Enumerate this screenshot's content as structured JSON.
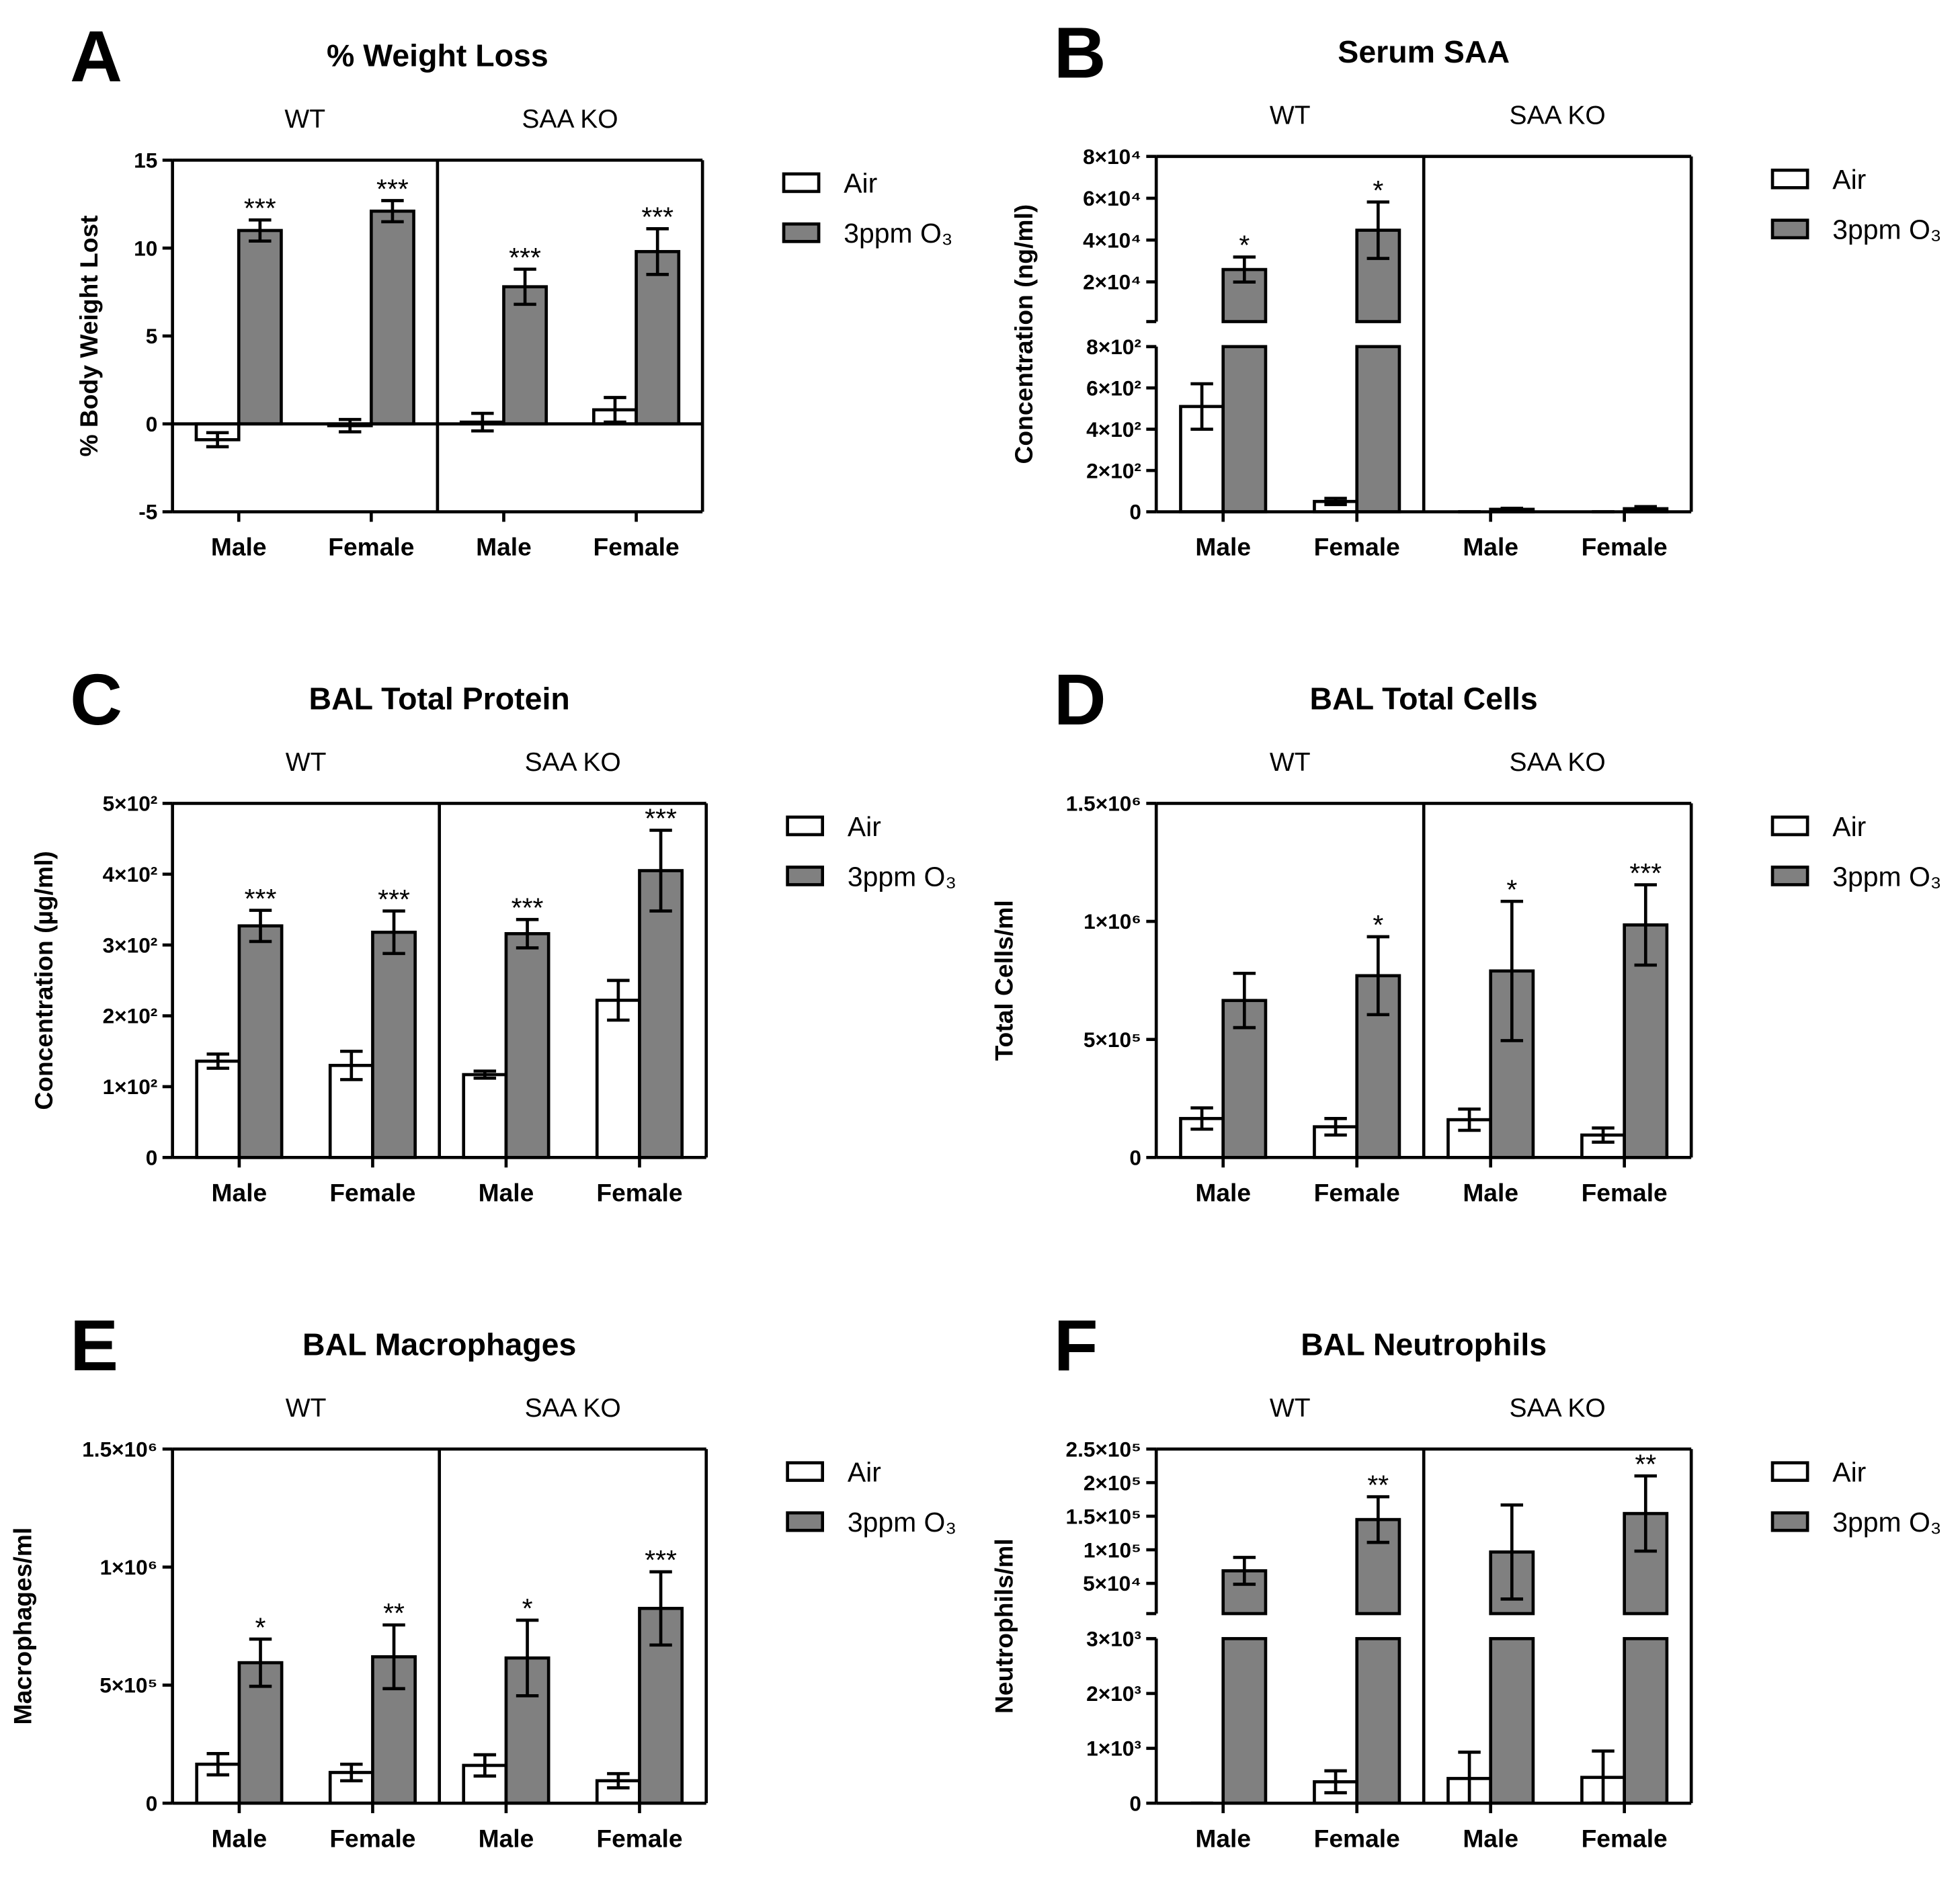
{
  "chart_data": [
    {
      "type": "bar",
      "panel": "A",
      "title": "% Weight Loss",
      "groups": [
        "WT",
        "SAA KO"
      ],
      "categories": [
        "Male",
        "Female",
        "Male",
        "Female"
      ],
      "ylabel": "% Body Weight Lost",
      "ylim": [
        -5,
        15
      ],
      "yticks": [
        -5,
        0,
        5,
        10,
        15
      ],
      "series": [
        {
          "name": "Air",
          "color": "#ffffff",
          "values": [
            -0.9,
            -0.1,
            0.1,
            0.8
          ],
          "errors": [
            0.4,
            0.35,
            0.5,
            0.7
          ]
        },
        {
          "name": "3ppm O₃",
          "color": "#808080",
          "values": [
            11.0,
            12.1,
            7.8,
            9.8
          ],
          "errors": [
            0.6,
            0.6,
            1.0,
            1.3
          ]
        }
      ],
      "annotations": [
        "***",
        "***",
        "***",
        "***"
      ]
    },
    {
      "type": "bar",
      "panel": "B",
      "title": "Serum SAA",
      "groups": [
        "WT",
        "SAA KO"
      ],
      "categories": [
        "Male",
        "Female",
        "Male",
        "Female"
      ],
      "ylabel": "Concentration (ng/ml)",
      "y_segments": [
        {
          "ylim": [
            0,
            800
          ],
          "yticks": [
            0,
            {
              "value": 200,
              "label": "2×10²"
            },
            {
              "value": 400,
              "label": "4×10²"
            },
            {
              "value": 600,
              "label": "6×10²"
            },
            {
              "value": 800,
              "label": "8×10²"
            }
          ]
        },
        {
          "ylim": [
            1000,
            80000
          ],
          "yticks": [
            {
              "value": 20000,
              "label": "2×10⁴"
            },
            {
              "value": 40000,
              "label": "4×10⁴"
            },
            {
              "value": 60000,
              "label": "6×10⁴"
            },
            {
              "value": 80000,
              "label": "8×10⁴"
            }
          ]
        }
      ],
      "series": [
        {
          "name": "Air",
          "color": "#ffffff",
          "values": [
            510,
            50,
            0,
            0
          ],
          "errors": [
            110,
            15,
            0,
            0
          ]
        },
        {
          "name": "3ppm O₃",
          "color": "#808080",
          "values": [
            25900,
            44700,
            12,
            15
          ],
          "errors": [
            6000,
            13500,
            5,
            10
          ]
        }
      ],
      "annotations": [
        "*",
        "*",
        null,
        null
      ]
    },
    {
      "type": "bar",
      "panel": "C",
      "title": "BAL Total Protein",
      "groups": [
        "WT",
        "SAA KO"
      ],
      "categories": [
        "Male",
        "Female",
        "Male",
        "Female"
      ],
      "ylabel": "Concentration (µg/ml)",
      "ylim": [
        0,
        500
      ],
      "yticks": [
        0,
        {
          "value": 100,
          "label": "1×10²"
        },
        {
          "value": 200,
          "label": "2×10²"
        },
        {
          "value": 300,
          "label": "3×10²"
        },
        {
          "value": 400,
          "label": "4×10²"
        },
        {
          "value": 500,
          "label": "5×10²"
        }
      ],
      "series": [
        {
          "name": "Air",
          "color": "#ffffff",
          "values": [
            136,
            130,
            117,
            222
          ],
          "errors": [
            10,
            20,
            5,
            28
          ]
        },
        {
          "name": "3ppm O₃",
          "color": "#808080",
          "values": [
            327,
            318,
            316,
            405
          ],
          "errors": [
            22,
            30,
            20,
            57
          ]
        }
      ],
      "annotations": [
        "***",
        "***",
        "***",
        "***"
      ]
    },
    {
      "type": "bar",
      "panel": "D",
      "title": "BAL Total Cells",
      "groups": [
        "WT",
        "SAA KO"
      ],
      "categories": [
        "Male",
        "Female",
        "Male",
        "Female"
      ],
      "ylabel": "Total Cells/ml",
      "ylim": [
        0,
        1500000
      ],
      "yticks": [
        0,
        {
          "value": 500000,
          "label": "5×10⁵"
        },
        {
          "value": 1000000,
          "label": "1×10⁶"
        },
        {
          "value": 1500000,
          "label": "1.5×10⁶"
        }
      ],
      "series": [
        {
          "name": "Air",
          "color": "#ffffff",
          "values": [
            165000,
            130000,
            160000,
            95000
          ],
          "errors": [
            45000,
            35000,
            45000,
            30000
          ]
        },
        {
          "name": "3ppm O₃",
          "color": "#808080",
          "values": [
            665000,
            770000,
            790000,
            985000
          ],
          "errors": [
            115000,
            165000,
            295000,
            170000
          ]
        }
      ],
      "annotations": [
        null,
        "*",
        "*",
        "***"
      ]
    },
    {
      "type": "bar",
      "panel": "E",
      "title": "BAL Macrophages",
      "groups": [
        "WT",
        "SAA KO"
      ],
      "categories": [
        "Male",
        "Female",
        "Male",
        "Female"
      ],
      "ylabel": "Macrophages/ml",
      "ylim": [
        0,
        1500000
      ],
      "yticks": [
        0,
        {
          "value": 500000,
          "label": "5×10⁵"
        },
        {
          "value": 1000000,
          "label": "1×10⁶"
        },
        {
          "value": 1500000,
          "label": "1.5×10⁶"
        }
      ],
      "series": [
        {
          "name": "Air",
          "color": "#ffffff",
          "values": [
            165000,
            130000,
            160000,
            95000
          ],
          "errors": [
            45000,
            35000,
            45000,
            30000
          ]
        },
        {
          "name": "3ppm O₃",
          "color": "#808080",
          "values": [
            595000,
            620000,
            615000,
            825000
          ],
          "errors": [
            100000,
            135000,
            160000,
            155000
          ]
        }
      ],
      "annotations": [
        "*",
        "**",
        "*",
        "***"
      ]
    },
    {
      "type": "bar",
      "panel": "F",
      "title": "BAL Neutrophils",
      "groups": [
        "WT",
        "SAA KO"
      ],
      "categories": [
        "Male",
        "Female",
        "Male",
        "Female"
      ],
      "ylabel": "Neutrophils/ml",
      "y_segments": [
        {
          "ylim": [
            0,
            3000
          ],
          "yticks": [
            0,
            {
              "value": 1000,
              "label": "1×10³"
            },
            {
              "value": 2000,
              "label": "2×10³"
            },
            {
              "value": 3000,
              "label": "3×10³"
            }
          ]
        },
        {
          "ylim": [
            5000,
            250000
          ],
          "yticks": [
            {
              "value": 50000,
              "label": "5×10⁴"
            },
            {
              "value": 100000,
              "label": "1×10⁵"
            },
            {
              "value": 150000,
              "label": "1.5×10⁵"
            },
            {
              "value": 200000,
              "label": "2×10⁵"
            },
            {
              "value": 250000,
              "label": "2.5×10⁵"
            }
          ]
        }
      ],
      "series": [
        {
          "name": "Air",
          "color": "#ffffff",
          "values": [
            0,
            390,
            450,
            470
          ],
          "errors": [
            0,
            200,
            480,
            480
          ]
        },
        {
          "name": "3ppm O₃",
          "color": "#808080",
          "values": [
            68700,
            145000,
            96700,
            154000
          ],
          "errors": [
            20000,
            34000,
            70000,
            56000
          ]
        }
      ],
      "annotations": [
        null,
        "**",
        null,
        "**"
      ]
    }
  ]
}
